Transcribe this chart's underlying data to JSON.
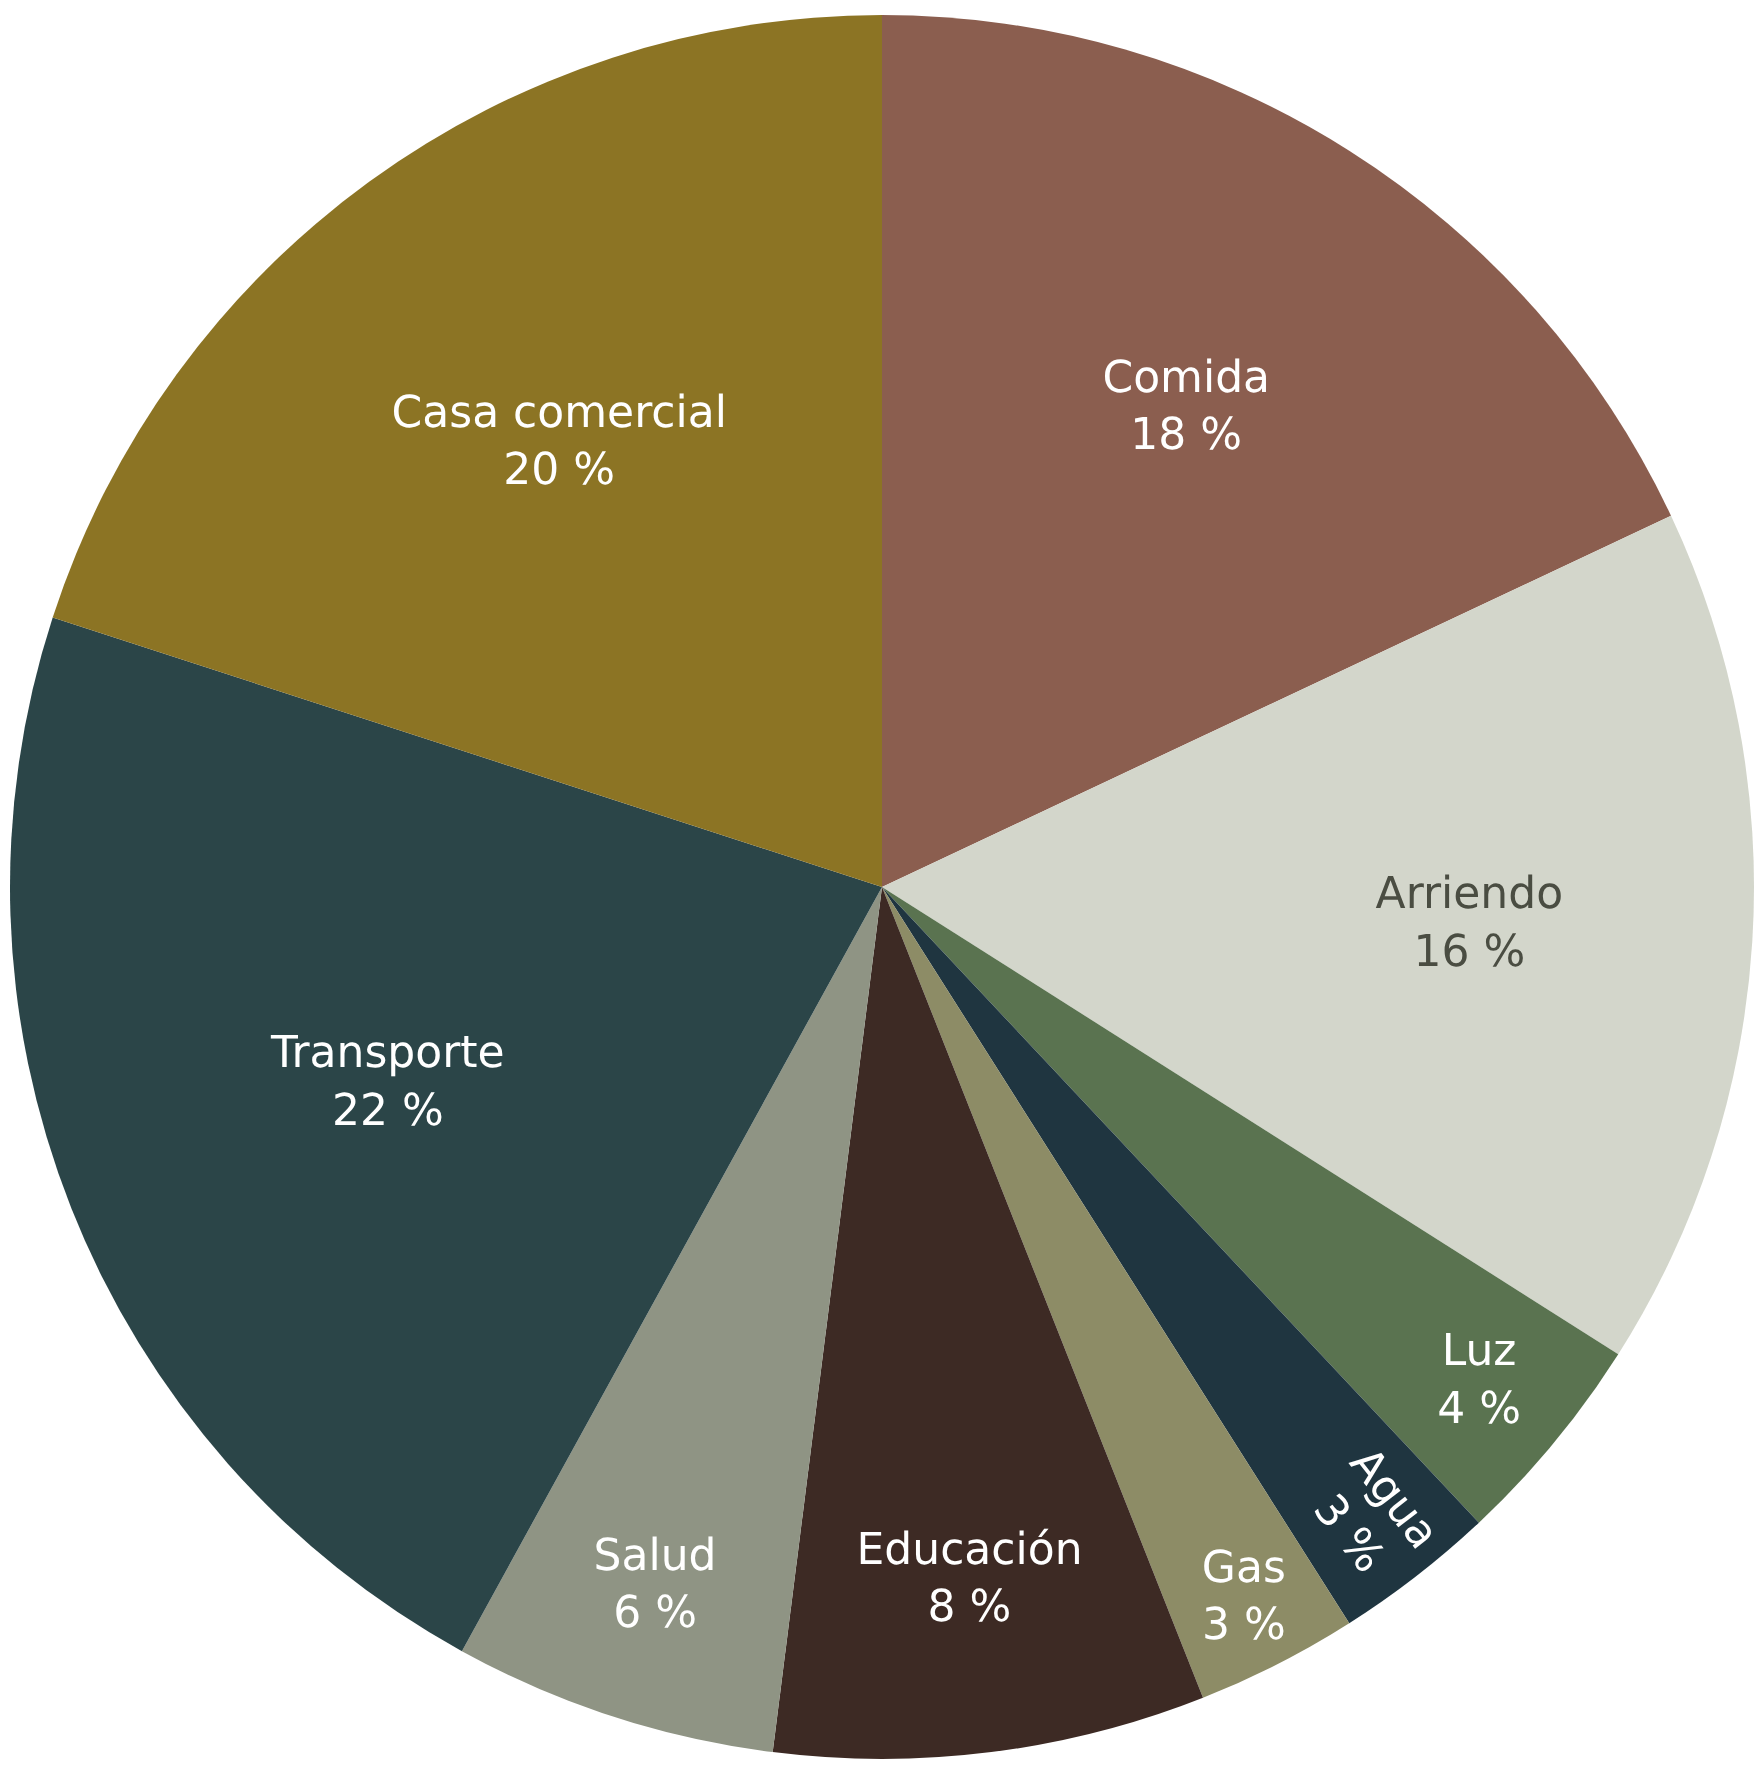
{
  "chart_data": {
    "type": "pie",
    "categories": [
      "Comida",
      "Arriendo",
      "Luz",
      "Agua",
      "Gas",
      "Educación",
      "Salud",
      "Transporte",
      "Casa comercial"
    ],
    "values": [
      18,
      16,
      4,
      3,
      3,
      8,
      6,
      22,
      20
    ],
    "value_labels": [
      "18 %",
      "16 %",
      "4 %",
      "3 %",
      "3 %",
      "8 %",
      "6 %",
      "22 %",
      "20 %"
    ],
    "colors": [
      "#8b5e4f",
      "#d3d6cb",
      "#5a7350",
      "#1f3540",
      "#8d8c66",
      "#3d2a24",
      "#8f9484",
      "#2b4548",
      "#8c7424"
    ],
    "legend": false
  }
}
